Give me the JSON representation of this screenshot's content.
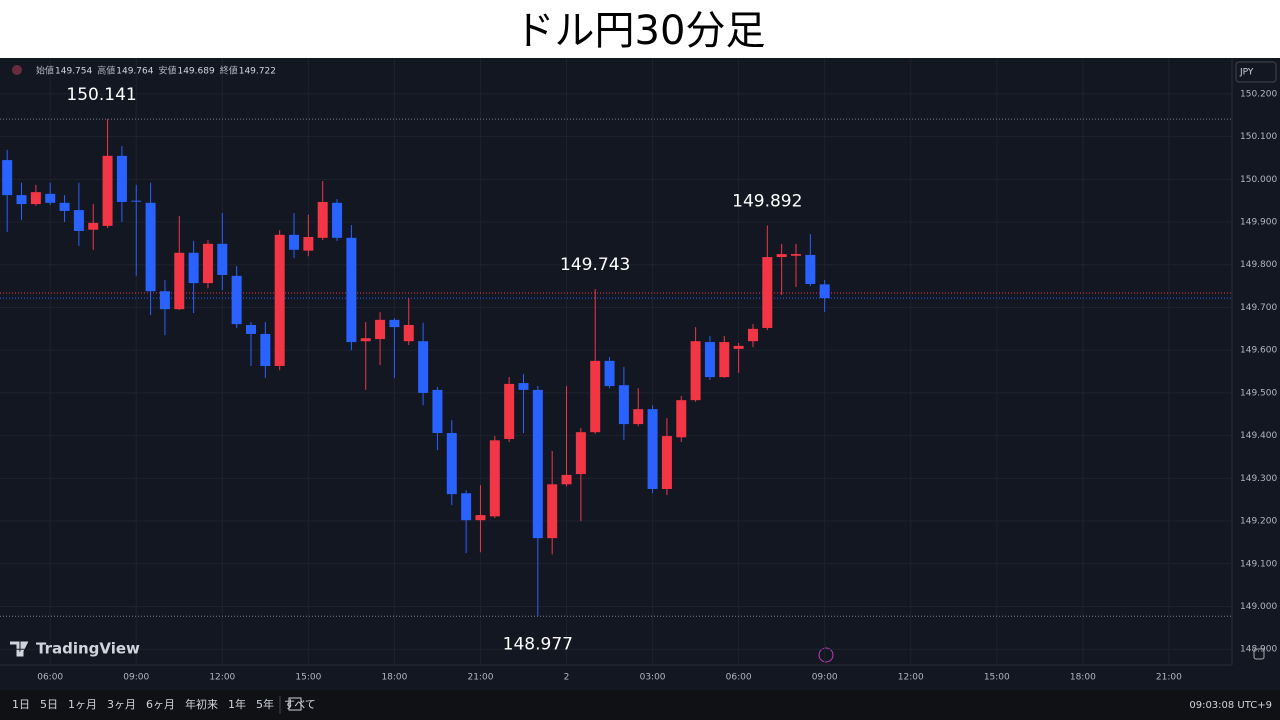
{
  "title": "ドル円30分足",
  "chart_data": {
    "type": "candlestick",
    "legend_ohlc": [
      {
        "label": "始値",
        "value": 149.754
      },
      {
        "label": "高値",
        "value": 149.764
      },
      {
        "label": "安値",
        "value": 149.689
      },
      {
        "label": "終値",
        "value": 149.722
      }
    ],
    "currency": "JPY",
    "brand": "TradingView",
    "up_color": "#f23645",
    "down_color": "#2962ff",
    "open": [
      150.045,
      149.963,
      149.942,
      149.966,
      149.945,
      149.928,
      149.882,
      149.891,
      150.055,
      149.95,
      149.945,
      149.738,
      149.696,
      149.828,
      149.757,
      149.849,
      149.774,
      149.659,
      149.638,
      149.563,
      149.87,
      149.833,
      149.863,
      149.945,
      149.863,
      149.621,
      149.626,
      149.671,
      149.621,
      149.621,
      149.507,
      149.406,
      149.265,
      149.202,
      149.211,
      149.392,
      149.523,
      149.507,
      149.16,
      149.286,
      149.31,
      149.408,
      149.575,
      149.518,
      149.427,
      149.462,
      149.275,
      149.396,
      149.483,
      149.619,
      149.537,
      149.603,
      149.621,
      149.652,
      149.818,
      149.821,
      149.823,
      149.754
    ],
    "high": [
      150.069,
      149.992,
      149.987,
      149.992,
      149.963,
      149.992,
      149.942,
      150.141,
      150.078,
      149.987,
      149.992,
      149.764,
      149.914,
      149.856,
      149.858,
      149.921,
      149.797,
      149.666,
      149.666,
      149.881,
      149.921,
      149.917,
      149.996,
      149.954,
      149.893,
      149.666,
      149.689,
      149.675,
      149.722,
      149.664,
      149.514,
      149.436,
      149.272,
      149.284,
      149.399,
      149.537,
      149.544,
      149.516,
      149.364,
      149.516,
      149.418,
      149.743,
      149.584,
      149.561,
      149.511,
      149.471,
      149.441,
      149.493,
      149.654,
      149.633,
      149.633,
      149.617,
      149.661,
      149.892,
      149.849,
      149.849,
      149.872,
      149.764
    ],
    "low": [
      149.877,
      149.905,
      149.938,
      149.94,
      149.9,
      149.844,
      149.835,
      149.886,
      149.9,
      149.774,
      149.682,
      149.635,
      149.694,
      149.687,
      149.745,
      149.741,
      149.652,
      149.563,
      149.535,
      149.553,
      149.816,
      149.82,
      149.858,
      149.856,
      149.6,
      149.507,
      149.565,
      149.535,
      149.612,
      149.471,
      149.366,
      149.237,
      149.125,
      149.127,
      149.207,
      149.385,
      149.406,
      148.977,
      149.122,
      149.281,
      149.2,
      149.404,
      149.511,
      149.39,
      149.422,
      149.265,
      149.261,
      149.385,
      149.479,
      149.53,
      149.535,
      149.547,
      149.607,
      149.647,
      149.729,
      149.748,
      149.75,
      149.689
    ],
    "close": [
      149.963,
      149.942,
      149.97,
      149.945,
      149.926,
      149.879,
      149.898,
      150.055,
      149.947,
      149.949,
      149.738,
      149.696,
      149.828,
      149.757,
      149.849,
      149.776,
      149.661,
      149.638,
      149.563,
      149.87,
      149.835,
      149.865,
      149.947,
      149.863,
      149.619,
      149.628,
      149.671,
      149.654,
      149.659,
      149.5,
      149.406,
      149.263,
      149.202,
      149.214,
      149.389,
      149.521,
      149.507,
      149.16,
      149.286,
      149.308,
      149.408,
      149.575,
      149.516,
      149.427,
      149.462,
      149.275,
      149.399,
      149.483,
      149.621,
      149.537,
      149.619,
      149.61,
      149.65,
      149.818,
      149.825,
      149.825,
      149.755,
      149.722
    ],
    "annotations": [
      {
        "label": "150.141",
        "value": 150.141,
        "x": 7,
        "line": true
      },
      {
        "label": "149.743",
        "value": 149.743,
        "x": 41
      },
      {
        "label": "149.892",
        "value": 149.892,
        "x": 53
      },
      {
        "label": "148.977",
        "value": 148.977,
        "x": 37,
        "line": true
      }
    ],
    "price_lines": [
      {
        "value": 149.734,
        "color": "#f23645"
      },
      {
        "value": 149.722,
        "color": "#2962ff"
      }
    ],
    "xlim": [
      -0.5,
      85.4
    ],
    "xticks": [
      {
        "value": 3,
        "label": "06:00"
      },
      {
        "value": 9,
        "label": "09:00"
      },
      {
        "value": 15,
        "label": "12:00"
      },
      {
        "value": 21,
        "label": "15:00"
      },
      {
        "value": 27,
        "label": "18:00"
      },
      {
        "value": 33,
        "label": "21:00"
      },
      {
        "value": 39,
        "label": "2"
      },
      {
        "value": 45,
        "label": "03:00"
      },
      {
        "value": 51,
        "label": "06:00"
      },
      {
        "value": 57,
        "label": "09:00"
      },
      {
        "value": 63,
        "label": "12:00"
      },
      {
        "value": 69,
        "label": "15:00"
      },
      {
        "value": 75,
        "label": "18:00"
      },
      {
        "value": 81,
        "label": "21:00"
      }
    ],
    "ylim": [
      148.863,
      150.284
    ],
    "yticks": [
      {
        "value": 148.9,
        "label": "148.900"
      },
      {
        "value": 149.0,
        "label": "149.000"
      },
      {
        "value": 149.1,
        "label": "149.100"
      },
      {
        "value": 149.2,
        "label": "149.200"
      },
      {
        "value": 149.3,
        "label": "149.300"
      },
      {
        "value": 149.4,
        "label": "149.400"
      },
      {
        "value": 149.5,
        "label": "149.500"
      },
      {
        "value": 149.6,
        "label": "149.600"
      },
      {
        "value": 149.7,
        "label": "149.700"
      },
      {
        "value": 149.8,
        "label": "149.800"
      },
      {
        "value": 149.9,
        "label": "149.900"
      },
      {
        "value": 150.0,
        "label": "150.000"
      },
      {
        "value": 150.1,
        "label": "150.100"
      },
      {
        "value": 150.2,
        "label": "150.200"
      }
    ],
    "grid": true,
    "ranges": [
      "1日",
      "5日",
      "1ヶ月",
      "3ヶ月",
      "6ヶ月",
      "年初来",
      "1年",
      "5年",
      "すべて"
    ],
    "clock": "09:03:08 UTC+9"
  }
}
